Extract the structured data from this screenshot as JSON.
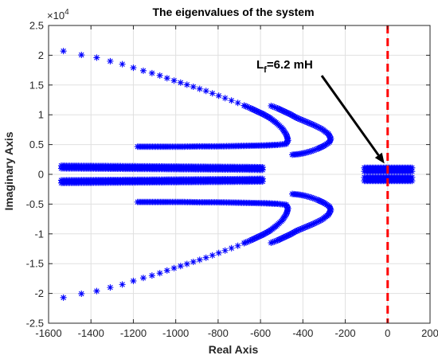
{
  "chart_data": {
    "type": "scatter",
    "title": "The eigenvalues of the system",
    "xlabel": "Real Axis",
    "ylabel": "Imaginary Axis",
    "y_exponent": "×10",
    "y_exponent_power": "4",
    "xlim": [
      -1600,
      200
    ],
    "ylim": [
      -25000,
      25000
    ],
    "xticks": [
      -1600,
      -1400,
      -1200,
      -1000,
      -800,
      -600,
      -400,
      -200,
      0,
      200
    ],
    "yticks": [
      -25000,
      -20000,
      -15000,
      -10000,
      -5000,
      0,
      5000,
      10000,
      15000,
      20000,
      25000
    ],
    "xtick_labels": [
      "-1600",
      "-1400",
      "-1200",
      "-1000",
      "-800",
      "-600",
      "-400",
      "-200",
      "0",
      "200"
    ],
    "ytick_labels": [
      "-2.5",
      "-2",
      "-1.5",
      "-1",
      "-0.5",
      "0",
      "0.5",
      "1",
      "1.5",
      "2",
      "2.5"
    ],
    "grid": true,
    "marker": "*",
    "marker_color": "#0000ff",
    "vline": {
      "x": 0,
      "color": "#ff0000",
      "style": "dashed"
    },
    "annotation": {
      "text": "L",
      "sub": "f",
      "rest": "=6.2 mH",
      "point": [
        0,
        1000
      ]
    },
    "series": [
      {
        "values": [
          [
            -1530,
            20700
          ],
          [
            -1445,
            20050
          ],
          [
            -1373,
            19600
          ],
          [
            -1309,
            19000
          ],
          [
            -1252,
            18500
          ],
          [
            -1200,
            17900
          ],
          [
            -1153,
            17400
          ],
          [
            -1112,
            17000
          ],
          [
            -1075,
            16600
          ],
          [
            -1041,
            16150
          ],
          [
            -1008,
            15750
          ],
          [
            -977,
            15400
          ],
          [
            -947,
            15050
          ],
          [
            -917,
            14700
          ],
          [
            -887,
            14350
          ],
          [
            -857,
            14000
          ],
          [
            -827,
            13600
          ],
          [
            -797,
            13200
          ],
          [
            -767,
            12800
          ],
          [
            -737,
            12400
          ],
          [
            -707,
            12000
          ],
          [
            -677,
            11550
          ],
          [
            -647,
            11100
          ],
          [
            -617,
            10600
          ],
          [
            -587,
            10100
          ],
          [
            -557,
            9500
          ],
          [
            -527,
            8700
          ],
          [
            -497,
            7700
          ],
          [
            -477,
            6600
          ],
          [
            -470,
            5700
          ],
          [
            -480,
            5100
          ],
          [
            -520,
            4950
          ],
          [
            -580,
            4850
          ],
          [
            -650,
            4800
          ],
          [
            -720,
            4750
          ],
          [
            -800,
            4700
          ],
          [
            -880,
            4700
          ],
          [
            -960,
            4650
          ],
          [
            -1040,
            4650
          ],
          [
            -1110,
            4650
          ],
          [
            -1180,
            4650
          ]
        ]
      },
      {
        "values": [
          [
            -1530,
            -20700
          ],
          [
            -1445,
            -20050
          ],
          [
            -1373,
            -19600
          ],
          [
            -1309,
            -19000
          ],
          [
            -1252,
            -18500
          ],
          [
            -1200,
            -17900
          ],
          [
            -1153,
            -17400
          ],
          [
            -1112,
            -17000
          ],
          [
            -1075,
            -16600
          ],
          [
            -1041,
            -16150
          ],
          [
            -1008,
            -15750
          ],
          [
            -977,
            -15400
          ],
          [
            -947,
            -15050
          ],
          [
            -917,
            -14700
          ],
          [
            -887,
            -14350
          ],
          [
            -857,
            -14000
          ],
          [
            -827,
            -13600
          ],
          [
            -797,
            -13200
          ],
          [
            -767,
            -12800
          ],
          [
            -737,
            -12400
          ],
          [
            -707,
            -12000
          ],
          [
            -677,
            -11550
          ],
          [
            -647,
            -11100
          ],
          [
            -617,
            -10600
          ],
          [
            -587,
            -10100
          ],
          [
            -557,
            -9500
          ],
          [
            -527,
            -8700
          ],
          [
            -497,
            -7700
          ],
          [
            -477,
            -6600
          ],
          [
            -470,
            -5700
          ],
          [
            -480,
            -5100
          ],
          [
            -520,
            -4950
          ],
          [
            -580,
            -4850
          ],
          [
            -650,
            -4800
          ],
          [
            -720,
            -4750
          ],
          [
            -800,
            -4700
          ],
          [
            -880,
            -4700
          ],
          [
            -960,
            -4650
          ],
          [
            -1040,
            -4650
          ],
          [
            -1110,
            -4650
          ],
          [
            -1180,
            -4650
          ]
        ]
      },
      {
        "values": [
          [
            -450,
            3300
          ],
          [
            -420,
            3400
          ],
          [
            -390,
            3600
          ],
          [
            -360,
            3900
          ],
          [
            -330,
            4300
          ],
          [
            -300,
            4800
          ],
          [
            -275,
            5400
          ],
          [
            -268,
            6000
          ],
          [
            -280,
            6800
          ],
          [
            -310,
            7600
          ],
          [
            -350,
            8300
          ],
          [
            -390,
            8900
          ],
          [
            -430,
            9500
          ],
          [
            -460,
            10100
          ],
          [
            -490,
            10600
          ],
          [
            -520,
            11100
          ],
          [
            -550,
            11500
          ]
        ]
      },
      {
        "values": [
          [
            -450,
            -3300
          ],
          [
            -420,
            -3400
          ],
          [
            -390,
            -3600
          ],
          [
            -360,
            -3900
          ],
          [
            -330,
            -4300
          ],
          [
            -300,
            -4800
          ],
          [
            -275,
            -5400
          ],
          [
            -268,
            -6000
          ],
          [
            -280,
            -6800
          ],
          [
            -310,
            -7600
          ],
          [
            -350,
            -8300
          ],
          [
            -390,
            -8900
          ],
          [
            -430,
            -9500
          ],
          [
            -460,
            -10100
          ],
          [
            -490,
            -10600
          ],
          [
            -520,
            -11100
          ],
          [
            -550,
            -11500
          ]
        ]
      },
      {
        "values": [
          [
            -1540,
            1450
          ],
          [
            -1460,
            1430
          ],
          [
            -1380,
            1410
          ],
          [
            -1300,
            1390
          ],
          [
            -1220,
            1370
          ],
          [
            -1140,
            1350
          ],
          [
            -1060,
            1330
          ],
          [
            -980,
            1310
          ],
          [
            -900,
            1290
          ],
          [
            -820,
            1270
          ],
          [
            -740,
            1250
          ],
          [
            -660,
            1230
          ],
          [
            -590,
            1200
          ]
        ]
      },
      {
        "values": [
          [
            -1540,
            1000
          ],
          [
            -1460,
            980
          ],
          [
            -1380,
            960
          ],
          [
            -1300,
            940
          ],
          [
            -1220,
            920
          ],
          [
            -1140,
            900
          ],
          [
            -1060,
            880
          ],
          [
            -980,
            860
          ],
          [
            -900,
            840
          ],
          [
            -820,
            820
          ],
          [
            -740,
            800
          ],
          [
            -660,
            780
          ],
          [
            -590,
            750
          ]
        ]
      },
      {
        "values": [
          [
            -1540,
            -1000
          ],
          [
            -1460,
            -980
          ],
          [
            -1380,
            -960
          ],
          [
            -1300,
            -940
          ],
          [
            -1220,
            -920
          ],
          [
            -1140,
            -900
          ],
          [
            -1060,
            -880
          ],
          [
            -980,
            -860
          ],
          [
            -900,
            -840
          ],
          [
            -820,
            -820
          ],
          [
            -740,
            -800
          ],
          [
            -660,
            -780
          ],
          [
            -590,
            -750
          ]
        ]
      },
      {
        "values": [
          [
            -1540,
            -1450
          ],
          [
            -1460,
            -1430
          ],
          [
            -1380,
            -1410
          ],
          [
            -1300,
            -1390
          ],
          [
            -1220,
            -1370
          ],
          [
            -1140,
            -1350
          ],
          [
            -1060,
            -1330
          ],
          [
            -980,
            -1310
          ],
          [
            -900,
            -1290
          ],
          [
            -820,
            -1270
          ],
          [
            -740,
            -1250
          ],
          [
            -660,
            -1230
          ],
          [
            -590,
            -1200
          ]
        ]
      },
      {
        "values": [
          [
            -110,
            1100
          ],
          [
            -80,
            1100
          ],
          [
            -50,
            1100
          ],
          [
            -20,
            1100
          ],
          [
            10,
            1100
          ],
          [
            40,
            1100
          ],
          [
            70,
            1100
          ],
          [
            100,
            1100
          ],
          [
            115,
            1100
          ]
        ]
      },
      {
        "values": [
          [
            -110,
            500
          ],
          [
            -80,
            500
          ],
          [
            -50,
            500
          ],
          [
            -20,
            500
          ],
          [
            10,
            500
          ],
          [
            40,
            500
          ],
          [
            70,
            500
          ],
          [
            100,
            500
          ],
          [
            115,
            500
          ]
        ]
      },
      {
        "values": [
          [
            -110,
            -500
          ],
          [
            -80,
            -500
          ],
          [
            -50,
            -500
          ],
          [
            -20,
            -500
          ],
          [
            10,
            -500
          ],
          [
            40,
            -500
          ],
          [
            70,
            -500
          ],
          [
            100,
            -500
          ],
          [
            115,
            -500
          ]
        ]
      },
      {
        "values": [
          [
            -110,
            -1100
          ],
          [
            -80,
            -1100
          ],
          [
            -50,
            -1100
          ],
          [
            -20,
            -1100
          ],
          [
            10,
            -1100
          ],
          [
            40,
            -1100
          ],
          [
            70,
            -1100
          ],
          [
            100,
            -1100
          ],
          [
            115,
            -1100
          ]
        ]
      }
    ]
  }
}
